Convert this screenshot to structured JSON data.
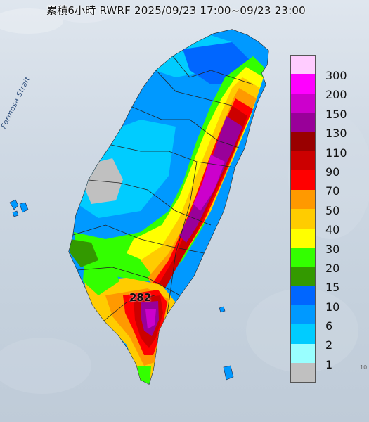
{
  "title": "累積6小時 RWRF 2025/09/23 17:00~09/23 23:00",
  "map": {
    "strait_label": "Formosa Strait",
    "max_value_label": "282",
    "edge_mark": "10"
  },
  "legend": [
    {
      "label": "300",
      "color": "#ffccff"
    },
    {
      "label": "200",
      "color": "#ff00ff"
    },
    {
      "label": "150",
      "color": "#cc00cc"
    },
    {
      "label": "130",
      "color": "#990099"
    },
    {
      "label": "110",
      "color": "#990000"
    },
    {
      "label": "90",
      "color": "#cc0000"
    },
    {
      "label": "70",
      "color": "#ff0000"
    },
    {
      "label": "50",
      "color": "#ff9900"
    },
    {
      "label": "40",
      "color": "#ffcc00"
    },
    {
      "label": "30",
      "color": "#ffff00"
    },
    {
      "label": "20",
      "color": "#33ff00"
    },
    {
      "label": "15",
      "color": "#339900"
    },
    {
      "label": "10",
      "color": "#0066ff"
    },
    {
      "label": "6",
      "color": "#0099ff"
    },
    {
      "label": "2",
      "color": "#00ccff"
    },
    {
      "label": "1",
      "color": "#99ffff"
    },
    {
      "label": "",
      "color": "#c0c0c0"
    }
  ]
}
